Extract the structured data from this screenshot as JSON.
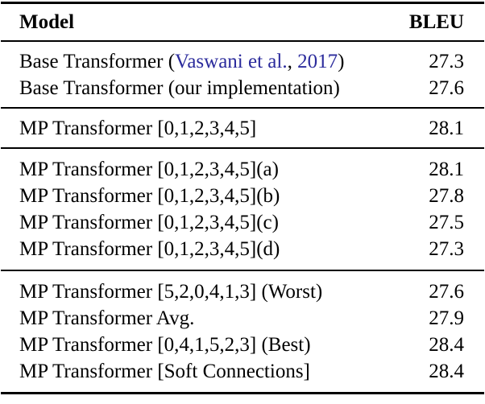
{
  "colors": {
    "text": "#000000",
    "citation_link": "#2b2b9c",
    "rule": "#000000",
    "background": "#ffffff"
  },
  "table": {
    "header": {
      "model": "Model",
      "bleu": "BLEU"
    },
    "sections": [
      {
        "rows": [
          {
            "model_pre": "Base Transformer (",
            "citation_author": "Vaswani et al.",
            "citation_separator": ", ",
            "citation_year": "2017",
            "model_post": ")",
            "bleu": "27.3"
          },
          {
            "model": "Base Transformer (our implementation)",
            "bleu": "27.6"
          }
        ]
      },
      {
        "rows": [
          {
            "model": "MP Transformer [0,1,2,3,4,5]",
            "bleu": "28.1"
          }
        ]
      },
      {
        "rows": [
          {
            "model": "MP Transformer [0,1,2,3,4,5](a)",
            "bleu": "28.1"
          },
          {
            "model": "MP Transformer [0,1,2,3,4,5](b)",
            "bleu": "27.8"
          },
          {
            "model": "MP Transformer [0,1,2,3,4,5](c)",
            "bleu": "27.5"
          },
          {
            "model": "MP Transformer [0,1,2,3,4,5](d)",
            "bleu": "27.3"
          }
        ]
      },
      {
        "rows": [
          {
            "model": "MP Transformer [5,2,0,4,1,3] (Worst)",
            "bleu": "27.6"
          },
          {
            "model": "MP Transformer Avg.",
            "bleu": "27.9"
          },
          {
            "model": "MP Transformer [0,4,1,5,2,3] (Best)",
            "bleu": "28.4"
          },
          {
            "model": "MP Transformer [Soft Connections]",
            "bleu": "28.4"
          }
        ]
      }
    ]
  }
}
